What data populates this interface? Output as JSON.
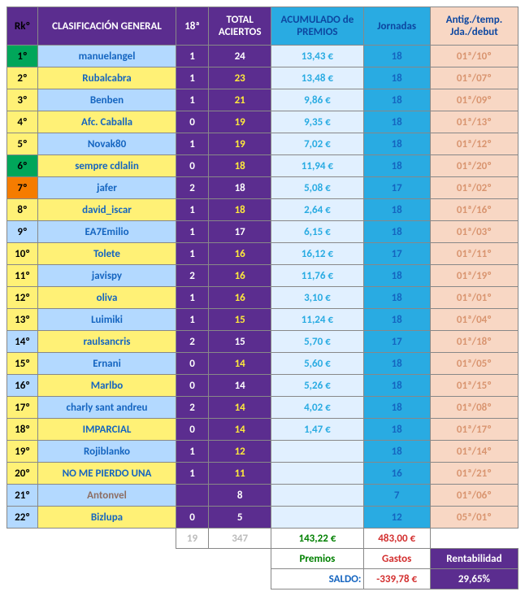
{
  "headers": {
    "rk": "Rkº",
    "name": "CLASIFICACIÓN GENERAL",
    "j18": "18ª",
    "total": "TOTAL ACIERTOS",
    "acum": "ACUMULADO de PREMIOS",
    "jornadas": "Jornadas",
    "antig": "Antig./temp. Jda./debut"
  },
  "rows": [
    {
      "rk": "1º",
      "rkBg": "bg-green",
      "name": "manuelangel",
      "nameBg": "bg-blue",
      "nameCol": "txt-blue",
      "j18": "1",
      "tot": "24",
      "totCol": "txt-white",
      "acu": "13,43 €",
      "jor": "18",
      "ant": "01ª/10º"
    },
    {
      "rk": "2º",
      "rkBg": "bg-yellow",
      "name": "Rubalcabra",
      "nameBg": "bg-yellow",
      "nameCol": "txt-blue",
      "j18": "1",
      "tot": "23",
      "totCol": "txt-yellow",
      "acu": "13,48 €",
      "jor": "18",
      "ant": "01ª/07º"
    },
    {
      "rk": "3º",
      "rkBg": "bg-yellow",
      "name": "Benben",
      "nameBg": "bg-blue",
      "nameCol": "txt-blue",
      "j18": "1",
      "tot": "21",
      "totCol": "txt-yellow",
      "acu": "9,86 €",
      "jor": "18",
      "ant": "01ª/09º"
    },
    {
      "rk": "4º",
      "rkBg": "bg-yellow",
      "name": "Afc. Caballa",
      "nameBg": "bg-yellow",
      "nameCol": "txt-blue",
      "j18": "0",
      "tot": "19",
      "totCol": "txt-yellow",
      "acu": "9,35 €",
      "jor": "18",
      "ant": "01ª/13º"
    },
    {
      "rk": "5º",
      "rkBg": "bg-yellow",
      "name": "Novak80",
      "nameBg": "bg-blue",
      "nameCol": "txt-blue",
      "j18": "1",
      "tot": "19",
      "totCol": "txt-yellow",
      "acu": "7,02 €",
      "jor": "18",
      "ant": "01ª/12º"
    },
    {
      "rk": "6º",
      "rkBg": "bg-green",
      "name": "sempre cdlalin",
      "nameBg": "bg-yellow",
      "nameCol": "txt-blue",
      "j18": "0",
      "tot": "18",
      "totCol": "txt-yellow",
      "acu": "11,94 €",
      "jor": "18",
      "ant": "01ª/20º"
    },
    {
      "rk": "7º",
      "rkBg": "bg-orange",
      "name": "jafer",
      "nameBg": "bg-blue",
      "nameCol": "txt-blue",
      "j18": "2",
      "tot": "18",
      "totCol": "txt-white",
      "acu": "5,08 €",
      "jor": "17",
      "ant": "01ª/02º"
    },
    {
      "rk": "8º",
      "rkBg": "bg-yellow",
      "name": "david_iscar",
      "nameBg": "bg-yellow",
      "nameCol": "txt-blue",
      "j18": "1",
      "tot": "18",
      "totCol": "txt-yellow",
      "acu": "2,64 €",
      "jor": "18",
      "ant": "01ª/16º"
    },
    {
      "rk": "9º",
      "rkBg": "bg-blue",
      "name": "EA7Emilio",
      "nameBg": "bg-blue",
      "nameCol": "txt-blue",
      "j18": "1",
      "tot": "17",
      "totCol": "txt-white",
      "acu": "6,15 €",
      "jor": "18",
      "ant": "01ª/03º"
    },
    {
      "rk": "10º",
      "rkBg": "bg-yellow",
      "name": "Tolete",
      "nameBg": "bg-yellow",
      "nameCol": "txt-blue",
      "j18": "1",
      "tot": "16",
      "totCol": "txt-yellow",
      "acu": "16,12 €",
      "jor": "17",
      "ant": "01ª/11º"
    },
    {
      "rk": "11º",
      "rkBg": "bg-yellow",
      "name": "javispy",
      "nameBg": "bg-blue",
      "nameCol": "txt-blue",
      "j18": "2",
      "tot": "16",
      "totCol": "txt-yellow",
      "acu": "11,76 €",
      "jor": "18",
      "ant": "01ª/19º"
    },
    {
      "rk": "12º",
      "rkBg": "bg-yellow",
      "name": "oliva",
      "nameBg": "bg-yellow",
      "nameCol": "txt-blue",
      "j18": "1",
      "tot": "16",
      "totCol": "txt-yellow",
      "acu": "3,10 €",
      "jor": "18",
      "ant": "01ª/01º"
    },
    {
      "rk": "13º",
      "rkBg": "bg-yellow",
      "name": "Luimiki",
      "nameBg": "bg-blue",
      "nameCol": "txt-blue",
      "j18": "1",
      "tot": "15",
      "totCol": "txt-yellow",
      "acu": "11,24 €",
      "jor": "18",
      "ant": "01ª/04º"
    },
    {
      "rk": "14º",
      "rkBg": "bg-blue",
      "name": "raulsancris",
      "nameBg": "bg-yellow",
      "nameCol": "txt-blue",
      "j18": "2",
      "tot": "15",
      "totCol": "txt-white",
      "acu": "5,70 €",
      "jor": "17",
      "ant": "01ª/18º"
    },
    {
      "rk": "15º",
      "rkBg": "bg-yellow",
      "name": "Ernani",
      "nameBg": "bg-blue",
      "nameCol": "txt-blue",
      "j18": "0",
      "tot": "14",
      "totCol": "txt-yellow",
      "acu": "5,60 €",
      "jor": "18",
      "ant": "01ª/05º"
    },
    {
      "rk": "16º",
      "rkBg": "bg-blue",
      "name": "Marlbo",
      "nameBg": "bg-yellow",
      "nameCol": "txt-blue",
      "j18": "0",
      "tot": "14",
      "totCol": "txt-white",
      "acu": "5,26 €",
      "jor": "18",
      "ant": "01ª/15º"
    },
    {
      "rk": "17º",
      "rkBg": "bg-yellow",
      "name": "charly sant andreu",
      "nameBg": "bg-blue",
      "nameCol": "txt-blue",
      "j18": "2",
      "tot": "14",
      "totCol": "txt-yellow",
      "acu": "4,02 €",
      "jor": "18",
      "ant": "01ª/08º"
    },
    {
      "rk": "18º",
      "rkBg": "bg-yellow",
      "name": "IMPARCIAL",
      "nameBg": "bg-yellow",
      "nameCol": "txt-blue",
      "j18": "0",
      "tot": "14",
      "totCol": "txt-yellow",
      "acu": "1,47 €",
      "jor": "18",
      "ant": "01ª/17º"
    },
    {
      "rk": "19º",
      "rkBg": "bg-yellow",
      "name": "Rojiblanko",
      "nameBg": "bg-blue",
      "nameCol": "txt-blue",
      "j18": "1",
      "tot": "12",
      "totCol": "txt-yellow",
      "acu": "",
      "jor": "18",
      "ant": "01ª/14º"
    },
    {
      "rk": "20º",
      "rkBg": "bg-yellow",
      "name": "NO ME PIERDO UNA",
      "nameBg": "bg-yellow",
      "nameCol": "txt-blue",
      "j18": "1",
      "tot": "11",
      "totCol": "txt-yellow",
      "acu": "",
      "jor": "16",
      "ant": "01ª/21º"
    },
    {
      "rk": "21º",
      "rkBg": "bg-blue",
      "name": "Antonvel",
      "nameBg": "bg-blue",
      "nameCol": "txt-brown",
      "j18": "",
      "tot": "8",
      "totCol": "txt-white",
      "acu": "",
      "jor": "7",
      "ant": "01ª/06º"
    },
    {
      "rk": "22º",
      "rkBg": "bg-blue",
      "name": "Bizlupa",
      "nameBg": "bg-yellow",
      "nameCol": "txt-blue",
      "j18": "0",
      "tot": "5",
      "totCol": "txt-white",
      "acu": "",
      "jor": "12",
      "ant": "05ª/01º"
    }
  ],
  "footer": {
    "sum18": "19",
    "sumTot": "347",
    "premiosVal": "143,22 €",
    "gastosVal": "483,00 €",
    "premiosLbl": "Premios",
    "gastosLbl": "Gastos",
    "rentLbl": "Rentabilidad",
    "saldoLbl": "SALDO:",
    "saldoVal": "-339,78 €",
    "rentVal": "29,65%"
  }
}
